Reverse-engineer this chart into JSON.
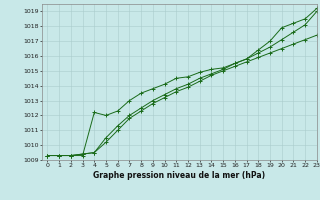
{
  "title": "Graphe pression niveau de la mer (hPa)",
  "bg_color": "#c8e8e8",
  "grid_color": "#aacccc",
  "line_color": "#1a6b1a",
  "xlim": [
    -0.5,
    23
  ],
  "ylim": [
    1009,
    1019.5
  ],
  "yticks": [
    1009,
    1010,
    1011,
    1012,
    1013,
    1014,
    1015,
    1016,
    1017,
    1018,
    1019
  ],
  "xticks": [
    0,
    1,
    2,
    3,
    4,
    5,
    6,
    7,
    8,
    9,
    10,
    11,
    12,
    13,
    14,
    15,
    16,
    17,
    18,
    19,
    20,
    21,
    22,
    23
  ],
  "line1": [
    1009.3,
    1009.3,
    1009.3,
    1009.3,
    1012.2,
    1012.0,
    1012.3,
    1013.0,
    1013.5,
    1013.8,
    1014.1,
    1014.5,
    1014.6,
    1014.9,
    1015.1,
    1015.2,
    1015.5,
    1015.8,
    1016.4,
    1017.0,
    1017.9,
    1018.2,
    1018.5,
    1019.2
  ],
  "line2": [
    1009.3,
    1009.3,
    1009.3,
    1009.4,
    1009.5,
    1010.2,
    1011.0,
    1011.8,
    1012.3,
    1012.8,
    1013.2,
    1013.6,
    1013.9,
    1014.3,
    1014.7,
    1015.0,
    1015.3,
    1015.6,
    1015.9,
    1016.2,
    1016.5,
    1016.8,
    1017.1,
    1017.4
  ],
  "line3": [
    1009.3,
    1009.3,
    1009.3,
    1009.4,
    1009.5,
    1010.5,
    1011.3,
    1012.0,
    1012.5,
    1013.0,
    1013.4,
    1013.8,
    1014.1,
    1014.5,
    1014.8,
    1015.1,
    1015.5,
    1015.8,
    1016.2,
    1016.6,
    1017.1,
    1017.6,
    1018.1,
    1019.0
  ],
  "title_fontsize": 5.5,
  "tick_fontsize": 4.5,
  "linewidth": 0.7,
  "markersize": 2.5,
  "markeredgewidth": 0.7
}
